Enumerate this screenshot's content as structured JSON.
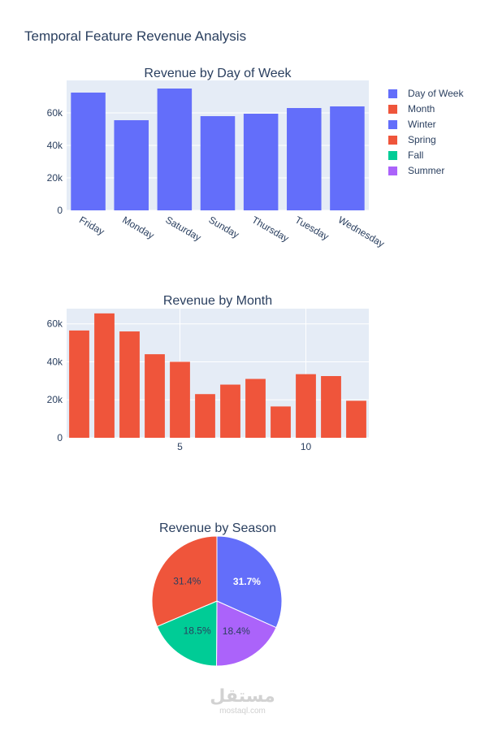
{
  "figure": {
    "title": "Temporal Feature Revenue Analysis"
  },
  "legend": {
    "entries": [
      {
        "name": "Day of Week",
        "color": "#636efa"
      },
      {
        "name": "Month",
        "color": "#ef553b"
      },
      {
        "name": "Winter",
        "color": "#636efa"
      },
      {
        "name": "Spring",
        "color": "#ef553b"
      },
      {
        "name": "Fall",
        "color": "#00cc96"
      },
      {
        "name": "Summer",
        "color": "#ab63fa"
      }
    ]
  },
  "chart_data": [
    {
      "type": "bar",
      "title": "Revenue by Day of Week",
      "categories": [
        "Friday",
        "Monday",
        "Saturday",
        "Sunday",
        "Thursday",
        "Tuesday",
        "Wednesday"
      ],
      "values": [
        72500,
        55500,
        75000,
        58000,
        59500,
        63000,
        64000
      ],
      "ylim": [
        0,
        80000
      ],
      "yticks": [
        0,
        20000,
        40000,
        60000
      ],
      "ytick_labels": [
        "0",
        "20k",
        "40k",
        "60k"
      ],
      "color": "#636efa",
      "grid": true
    },
    {
      "type": "bar",
      "title": "Revenue by Month",
      "x": [
        1,
        2,
        3,
        4,
        5,
        6,
        7,
        8,
        9,
        10,
        11,
        12
      ],
      "values": [
        56500,
        65500,
        56000,
        44000,
        40000,
        23000,
        28000,
        31000,
        16500,
        33500,
        32500,
        19500
      ],
      "xlim": [
        0.5,
        12.5
      ],
      "xticks": [
        5,
        10
      ],
      "xtick_labels": [
        "5",
        "10"
      ],
      "ylim": [
        0,
        68000
      ],
      "yticks": [
        0,
        20000,
        40000,
        60000
      ],
      "ytick_labels": [
        "0",
        "20k",
        "40k",
        "60k"
      ],
      "color": "#ef553b",
      "grid": true
    },
    {
      "type": "pie",
      "title": "Revenue by Season",
      "slices": [
        {
          "label": "Winter",
          "value": 31.7,
          "text": "31.7%",
          "color": "#636efa",
          "text_color": "#ffffff"
        },
        {
          "label": "Summer",
          "value": 18.4,
          "text": "18.4%",
          "color": "#ab63fa",
          "text_color": "#2a3f5f"
        },
        {
          "label": "Fall",
          "value": 18.5,
          "text": "18.5%",
          "color": "#00cc96",
          "text_color": "#2a3f5f"
        },
        {
          "label": "Spring",
          "value": 31.4,
          "text": "31.4%",
          "color": "#ef553b",
          "text_color": "#2a3f5f"
        }
      ]
    }
  ],
  "watermark": {
    "arabic": "مستقل",
    "latin": "mostaql.com"
  }
}
